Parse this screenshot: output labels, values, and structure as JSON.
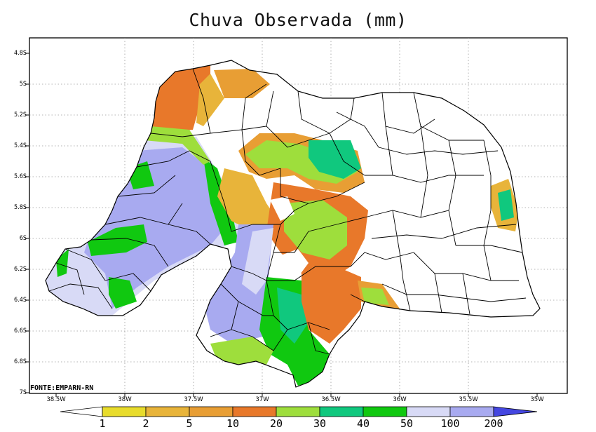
{
  "title": "Chuva Observada (mm)",
  "source_label": "FONTE:EMPARN-RN",
  "lat_labels": [
    "4.8S",
    "5S",
    "5.2S",
    "5.4S",
    "5.6S",
    "5.8S",
    "6S",
    "6.2S",
    "6.4S",
    "6.6S",
    "6.8S",
    "7S"
  ],
  "lon_labels": [
    "38.5W",
    "38W",
    "37.5W",
    "37W",
    "36.5W",
    "36W",
    "35.5W",
    "35W"
  ],
  "colorbar": {
    "labels": [
      "1",
      "2",
      "5",
      "10",
      "20",
      "30",
      "40",
      "50",
      "100",
      "200"
    ],
    "colors": [
      "#e8dc2c",
      "#e8b43a",
      "#e89e34",
      "#e8782a",
      "#9ede3c",
      "#10c87e",
      "#10c810",
      "#d8daf6",
      "#a8aaf0",
      "#7a7ce8",
      "#4446e0"
    ]
  }
}
